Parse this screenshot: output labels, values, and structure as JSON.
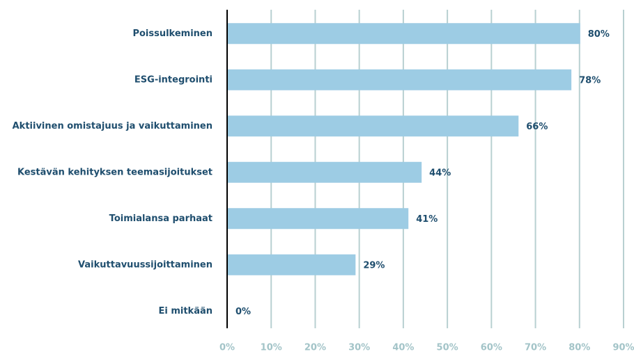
{
  "chart_data": {
    "type": "bar",
    "orientation": "horizontal",
    "categories": [
      "Poissulkeminen",
      "ESG-integrointi",
      "Aktiivinen omistajuus ja vaikuttaminen",
      "Kestävän kehityksen teemasijoitukset",
      "Toimialansa parhaat",
      "Vaikuttavuussijoittaminen",
      "Ei mitkään"
    ],
    "values": [
      80,
      78,
      66,
      44,
      41,
      29,
      0
    ],
    "value_labels": [
      "80%",
      "78%",
      "66%",
      "44%",
      "41%",
      "29%",
      "0%"
    ],
    "color": "#9dcce4",
    "xlim": [
      0,
      90
    ],
    "xticks": [
      {
        "value": 0,
        "label": "0%"
      },
      {
        "value": 10,
        "label": "10%"
      },
      {
        "value": 20,
        "label": "20%"
      },
      {
        "value": 30,
        "label": "30%"
      },
      {
        "value": 40,
        "label": "40%"
      },
      {
        "value": 50,
        "label": "50%"
      },
      {
        "value": 60,
        "label": "60%"
      },
      {
        "value": 70,
        "label": "70%"
      },
      {
        "value": 80,
        "label": "80%"
      },
      {
        "value": 90,
        "label": "90%"
      }
    ],
    "grid": true
  }
}
